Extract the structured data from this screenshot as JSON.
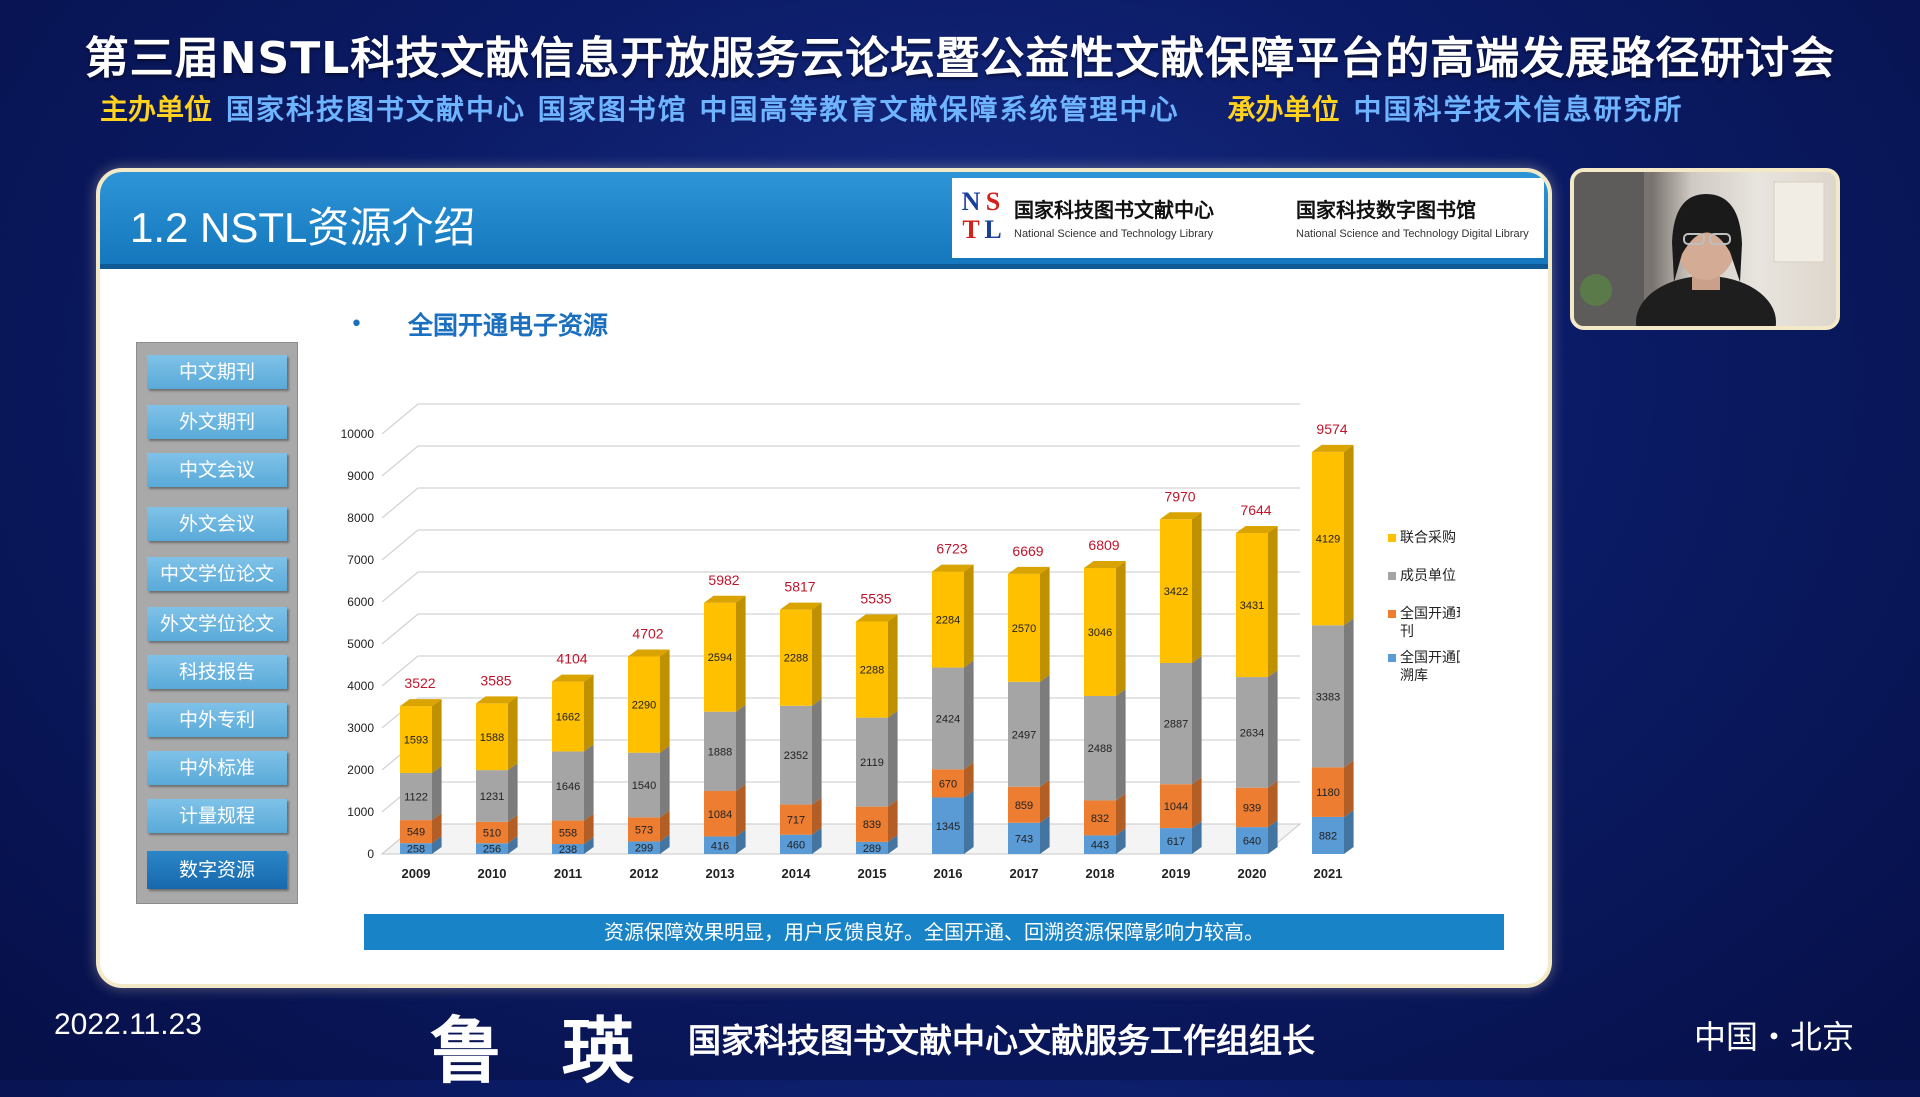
{
  "conference": {
    "title": "第三届NSTL科技文献信息开放服务云论坛暨公益性文献保障平台的高端发展路径研讨会",
    "host_label": "主办单位",
    "host_orgs": "国家科技图书文献中心 国家图书馆 中国高等教育文献保障系统管理中心",
    "organizer_label": "承办单位",
    "organizer_orgs": "中国科学技术信息研究所"
  },
  "slide": {
    "title": "1.2 NSTL资源介绍",
    "logo": {
      "letters": [
        "N",
        "S",
        "T",
        "L"
      ],
      "cn_name_1": "国家科技图书文献中心",
      "en_name_1": "National Science and Technology Library",
      "cn_name_2": "国家科技数字图书馆",
      "en_name_2": "National Science and Technology Digital Library"
    },
    "sidebar": {
      "items": [
        {
          "label": "中文期刊"
        },
        {
          "label": "外文期刊"
        },
        {
          "label": "中文会议"
        },
        {
          "label": "外文会议"
        },
        {
          "label": "中文学位论文"
        },
        {
          "label": "外文学位论文"
        },
        {
          "label": "科技报告"
        },
        {
          "label": "中外专利"
        },
        {
          "label": "中外标准"
        },
        {
          "label": "计量规程"
        },
        {
          "label": "数字资源"
        }
      ],
      "active_index": 10
    },
    "chart_heading": "全国开通电子资源",
    "summary": "资源保障效果明显，用户反馈良好。全国开通、回溯资源保障影响力较高。"
  },
  "chart_data": {
    "type": "bar",
    "stacked": true,
    "categories": [
      "2009",
      "2010",
      "2011",
      "2012",
      "2013",
      "2014",
      "2015",
      "2016",
      "2017",
      "2018",
      "2019",
      "2020",
      "2021"
    ],
    "ylim": [
      0,
      10000
    ],
    "yticks": [
      0,
      1000,
      2000,
      3000,
      4000,
      5000,
      6000,
      7000,
      8000,
      9000,
      10000
    ],
    "legend_position": "right",
    "series": [
      {
        "name": "全国开通回溯库",
        "color": "#5b9bd5",
        "values": [
          258,
          256,
          238,
          299,
          416,
          460,
          289,
          1345,
          743,
          443,
          617,
          640,
          882
        ]
      },
      {
        "name": "全国开通现刊",
        "color": "#ed7d31",
        "values": [
          549,
          510,
          558,
          573,
          1084,
          717,
          839,
          670,
          859,
          832,
          1044,
          939,
          1180
        ]
      },
      {
        "name": "成员单位",
        "color": "#a5a5a5",
        "values": [
          1122,
          1231,
          1646,
          1540,
          1888,
          2352,
          2119,
          2424,
          2497,
          2488,
          2887,
          2634,
          3383
        ]
      },
      {
        "name": "联合采购",
        "color": "#ffc000",
        "values": [
          1593,
          1588,
          1662,
          2290,
          2594,
          2288,
          2288,
          2284,
          2570,
          3046,
          3422,
          3431,
          4129
        ]
      }
    ],
    "totals": [
      3522,
      3585,
      4104,
      4702,
      5982,
      5817,
      5535,
      6723,
      6669,
      6809,
      7970,
      7644,
      9574
    ]
  },
  "footer": {
    "date": "2022.11.23",
    "speaker_name": "鲁瑛",
    "speaker_title": "国家科技图书文献中心文献服务工作组组长",
    "location": "中国・北京"
  }
}
